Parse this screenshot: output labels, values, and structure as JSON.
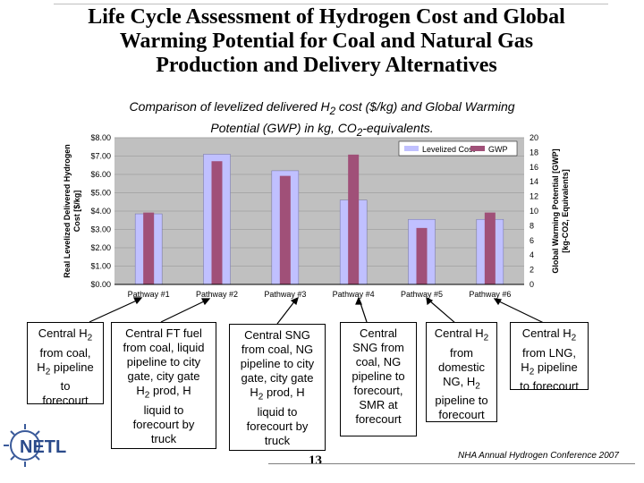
{
  "slide": {
    "title_line1": "Life Cycle Assessment of Hydrogen Cost and Global",
    "title_line2": "Warming Potential for Coal and Natural Gas",
    "title_line3": "Production and Delivery Alternatives",
    "subtitle_line1_pre": "Comparison of levelized delivered H",
    "subtitle_line1_sub": "2",
    "subtitle_line1_post": " cost ($/kg) and Global Warming",
    "subtitle_line2_pre": "Potential (GWP) in kg, CO",
    "subtitle_line2_sub": "2",
    "subtitle_line2_post": "-equivalents.",
    "page_number": "13",
    "footer": "NHA Annual Hydrogen Conference 2007",
    "logo_text": "NETL"
  },
  "chart_data": {
    "type": "bar",
    "categories": [
      "Pathway #1",
      "Pathway #2",
      "Pathway #3",
      "Pathway #4",
      "Pathway #5",
      "Pathway #6"
    ],
    "series": [
      {
        "name": "Levelized Cost",
        "axis": "left",
        "color": "#c0c0ff",
        "values": [
          3.85,
          7.1,
          6.2,
          4.6,
          3.55,
          3.55
        ]
      },
      {
        "name": "GWP",
        "axis": "right",
        "color": "#a05078",
        "values": [
          9.8,
          16.8,
          14.8,
          17.7,
          7.7,
          9.8
        ]
      }
    ],
    "ylabel_left_line1": "Real Levelized Delivered Hydrogen",
    "ylabel_left_line2": "Cost [$/kg]",
    "ylabel_right_line1": "Global Warming Potential [GWP]",
    "ylabel_right_line2": "[kg-CO2, Equivalents]",
    "yticks_left": [
      "$0.00",
      "$1.00",
      "$2.00",
      "$3.00",
      "$4.00",
      "$5.00",
      "$6.00",
      "$7.00",
      "$8.00"
    ],
    "yticks_right": [
      "0",
      "2",
      "4",
      "6",
      "8",
      "10",
      "12",
      "14",
      "16",
      "18",
      "20"
    ],
    "ylim_left": [
      0,
      8
    ],
    "ylim_right": [
      0,
      20
    ],
    "legend_position": "top-right",
    "plot_background": "#c0c0c0",
    "grid": true
  },
  "descriptions": [
    {
      "lines": [
        {
          "t": "Central H",
          "s": "2"
        },
        {
          "t": "from coal,"
        },
        {
          "t": "H",
          "s": "2",
          "a": " pipeline"
        },
        {
          "t": "to"
        },
        {
          "t": "forecourt"
        }
      ]
    },
    {
      "lines": [
        {
          "t": "Central FT fuel"
        },
        {
          "t": "from coal, liquid"
        },
        {
          "t": "pipeline to city"
        },
        {
          "t": "gate, city gate"
        },
        {
          "t": "H",
          "s": "2",
          "a": " prod, H"
        },
        {
          "t": "liquid to",
          "pre2": true
        },
        {
          "t": "forecourt by"
        },
        {
          "t": "truck"
        }
      ]
    },
    {
      "lines": [
        {
          "t": "Central SNG"
        },
        {
          "t": "from coal, NG"
        },
        {
          "t": "pipeline to city"
        },
        {
          "t": "gate, city gate"
        },
        {
          "t": "H",
          "s": "2",
          "a": " prod, H"
        },
        {
          "t": "liquid to"
        },
        {
          "t": "forecourt by"
        },
        {
          "t": "truck"
        }
      ]
    },
    {
      "lines": [
        {
          "t": "Central"
        },
        {
          "t": "SNG from"
        },
        {
          "t": "coal, NG"
        },
        {
          "t": "pipeline to"
        },
        {
          "t": "forecourt,"
        },
        {
          "t": "SMR at"
        },
        {
          "t": "forecourt"
        }
      ]
    },
    {
      "lines": [
        {
          "t": "Central H",
          "s": "2"
        },
        {
          "t": "from"
        },
        {
          "t": "domestic"
        },
        {
          "t": "NG, H",
          "s": "2"
        },
        {
          "t": "pipeline to"
        },
        {
          "t": "forecourt"
        }
      ]
    },
    {
      "lines": [
        {
          "t": "Central H",
          "s": "2"
        },
        {
          "t": "from LNG,"
        },
        {
          "t": "H",
          "s": "2",
          "a": " pipeline"
        },
        {
          "t": "to forecourt"
        }
      ]
    }
  ]
}
